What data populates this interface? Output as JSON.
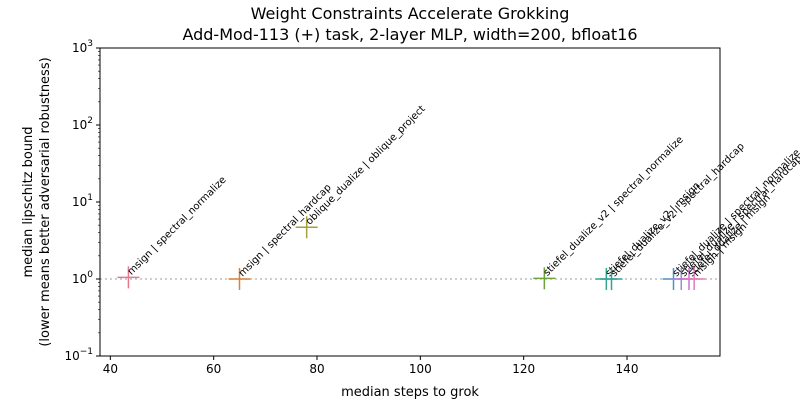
{
  "chart_data": {
    "type": "scatter",
    "title": "Weight Constraints Accelerate Grokking",
    "subtitle": "Add-Mod-113 (+) task, 2-layer MLP, width=200, bfloat16",
    "xlabel": "median steps to grok",
    "ylabel_line1": "median lipschitz bound",
    "ylabel_line2": "(lower means better adversarial robustness)",
    "xlim": [
      38,
      158
    ],
    "ylim": [
      0.1,
      1000
    ],
    "yscale": "log",
    "x_ticks": [
      40,
      60,
      80,
      100,
      120,
      140
    ],
    "y_ticks": [
      {
        "value": 0.1,
        "base": "10",
        "exp": "−1"
      },
      {
        "value": 1,
        "base": "10",
        "exp": "0"
      },
      {
        "value": 10,
        "base": "10",
        "exp": "1"
      },
      {
        "value": 100,
        "base": "10",
        "exp": "2"
      },
      {
        "value": 1000,
        "base": "10",
        "exp": "3"
      }
    ],
    "reference_line": {
      "y": 1,
      "style": "dotted",
      "color": "#b0b0b0"
    },
    "grid": false,
    "marker": "+",
    "points": [
      {
        "label": "msign | spectral_normalize",
        "x": 43.5,
        "y": 1.05,
        "color": "#e8768c"
      },
      {
        "label": "msign | spectral_hardcap",
        "x": 65,
        "y": 1.0,
        "color": "#d9813a"
      },
      {
        "label": "oblique_dualize | oblique_project",
        "x": 78,
        "y": 4.7,
        "color": "#a3a13a"
      },
      {
        "label": "stiefel_dualize_v2 | spectral_normalize",
        "x": 124,
        "y": 1.02,
        "color": "#6ba33a"
      },
      {
        "label": "stiefel_dualize_v2 | msign",
        "x": 136,
        "y": 1.0,
        "color": "#34a88a"
      },
      {
        "label": "stiefel_dualize_v2 | spectral_hardcap",
        "x": 137,
        "y": 1.0,
        "color": "#35a09a"
      },
      {
        "label": "stiefel_dualize | spectral_normalize",
        "x": 149,
        "y": 1.0,
        "color": "#4a94c8"
      },
      {
        "label": "stiefel_dualize | spectral_hardcap",
        "x": 150.5,
        "y": 1.0,
        "color": "#9a8fd8"
      },
      {
        "label": "stiefel_dualize | msign",
        "x": 152,
        "y": 1.0,
        "color": "#c874d6"
      },
      {
        "label": "msign | msign",
        "x": 153,
        "y": 1.0,
        "color": "#e57ab8"
      }
    ]
  }
}
